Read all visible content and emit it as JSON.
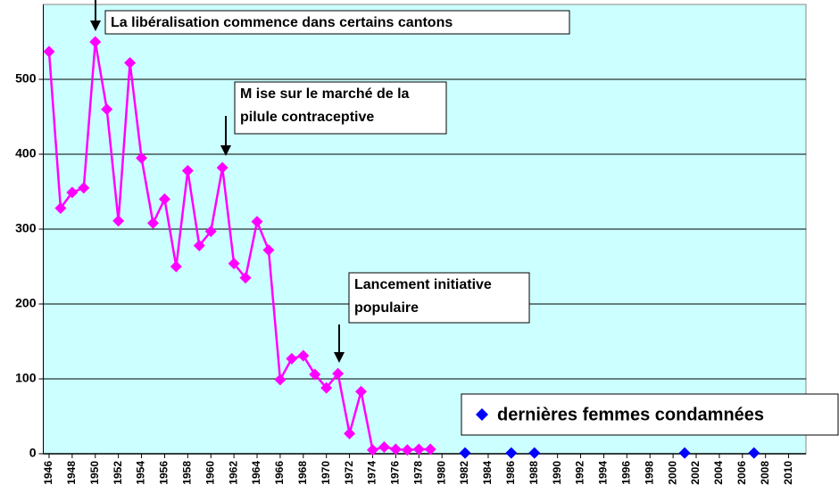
{
  "chart_data": {
    "type": "line",
    "annotations": [
      {
        "text": [
          "La libéralisation commence dans certains cantons"
        ]
      },
      {
        "text": [
          "M ise sur le marché de la",
          "pilule contraceptive"
        ]
      },
      {
        "text": [
          "Lancement initiative",
          "populaire"
        ]
      }
    ],
    "series": [
      {
        "color": "#ff00ff",
        "line": true,
        "x": [
          1946,
          1947,
          1948,
          1949,
          1950,
          1951,
          1952,
          1953,
          1954,
          1955,
          1956,
          1957,
          1958,
          1959,
          1960,
          1961,
          1962,
          1963,
          1964,
          1965,
          1966,
          1967,
          1968,
          1969,
          1970,
          1971,
          1972,
          1973,
          1974,
          1975,
          1976,
          1977,
          1978,
          1979
        ],
        "values": [
          537,
          328,
          349,
          355,
          550,
          460,
          311,
          522,
          395,
          308,
          340,
          250,
          378,
          278,
          297,
          382,
          254,
          235,
          310,
          272,
          99,
          127,
          131,
          106,
          88,
          107,
          27,
          83,
          5,
          9,
          6,
          5,
          6,
          6
        ]
      },
      {
        "name": "dernières femmes condamnées",
        "color": "#0000ff",
        "line": false,
        "x": [
          1982,
          1986,
          1988,
          2001,
          2007
        ],
        "values": [
          1,
          1,
          1,
          1,
          1
        ]
      }
    ],
    "xlim": [
      1945.5,
      2011.5
    ],
    "xticks": [
      1946,
      1948,
      1950,
      1952,
      1954,
      1956,
      1958,
      1960,
      1962,
      1964,
      1966,
      1968,
      1970,
      1972,
      1974,
      1976,
      1978,
      1980,
      1982,
      1984,
      1986,
      1988,
      1990,
      1992,
      1994,
      1996,
      1998,
      2000,
      2002,
      2004,
      2006,
      2008,
      2010
    ],
    "ylim": [
      0,
      600
    ],
    "yticks": [
      0,
      100,
      200,
      300,
      400,
      500
    ],
    "grid": true,
    "background": "#ccffff"
  }
}
